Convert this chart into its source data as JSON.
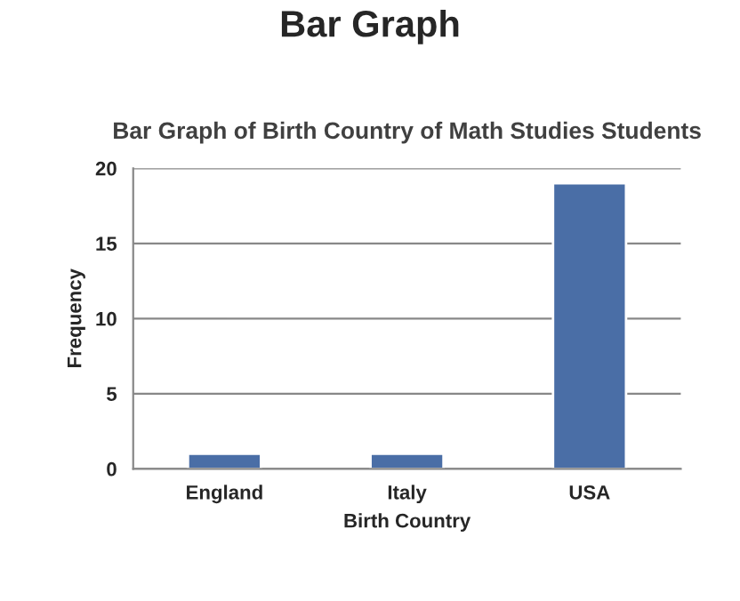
{
  "chart_data": {
    "type": "bar",
    "title": "Bar Graph",
    "subtitle": "Bar Graph of Birth Country of Math Studies Students",
    "xlabel": "Birth Country",
    "ylabel": "Frequency",
    "categories": [
      "England",
      "Italy",
      "USA"
    ],
    "values": [
      1,
      1,
      19
    ],
    "color": "#4a6ea6",
    "ylim": [
      0,
      20
    ],
    "yticks": [
      0,
      5,
      10,
      15,
      20
    ],
    "grid": "y"
  }
}
